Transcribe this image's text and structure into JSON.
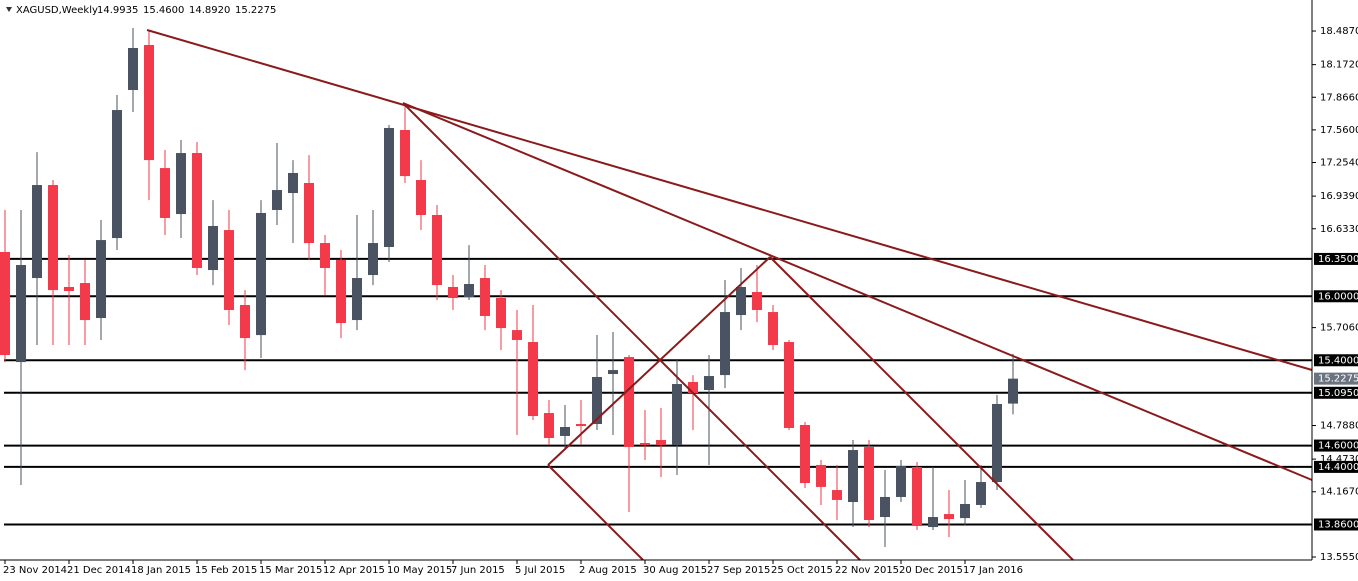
{
  "chart_data": {
    "type": "candlestick",
    "title": "XAGUSD,Weekly",
    "header_values": [
      "14.9935",
      "15.4600",
      "14.8920",
      "15.2275"
    ],
    "up_color": "#4a5361",
    "down_color": "#f23a4a",
    "level_color": "#000000",
    "trendline_color": "#8b1a1a",
    "categories": [
      "23 Nov 2014",
      null,
      null,
      null,
      "21 Dec 2014",
      null,
      null,
      null,
      "18 Jan 2015",
      null,
      null,
      null,
      "15 Feb 2015",
      null,
      null,
      null,
      "15 Mar 2015",
      null,
      null,
      null,
      "12 Apr 2015",
      null,
      null,
      null,
      "10 May 2015",
      null,
      null,
      null,
      "7 Jun 2015",
      null,
      null,
      null,
      "5 Jul 2015",
      null,
      null,
      null,
      "2 Aug 2015",
      null,
      null,
      null,
      "30 Aug 2015",
      null,
      null,
      null,
      "27 Sep 2015",
      null,
      null,
      null,
      "25 Oct 2015",
      null,
      null,
      null,
      "22 Nov 2015",
      null,
      null,
      null,
      "20 Dec 2015",
      null,
      null,
      null,
      "17 Jan 2016",
      null,
      null,
      null
    ],
    "open": [
      16.415,
      15.383,
      16.171,
      17.043,
      16.087,
      16.124,
      15.796,
      16.546,
      17.934,
      18.356,
      17.202,
      16.771,
      17.343,
      16.246,
      16.621,
      15.918,
      15.636,
      16.809,
      16.968,
      17.062,
      16.499,
      16.34,
      15.777,
      16.199,
      16.462,
      17.559,
      17.09,
      16.762,
      16.087,
      15.993,
      16.171,
      15.984,
      15.683,
      15.571,
      14.905,
      14.69,
      14.802,
      14.802,
      15.271,
      15.43,
      14.624,
      14.652,
      14.605,
      15.196,
      15.121,
      15.261,
      15.824,
      16.04,
      15.852,
      15.571,
      14.793,
      14.418,
      14.183,
      14.071,
      14.586,
      13.93,
      14.118,
      14.399,
      13.836,
      13.958,
      13.92,
      14.043,
      14.258,
      14.9935
    ],
    "high": [
      16.809,
      16.809,
      17.352,
      17.09,
      16.387,
      16.34,
      16.715,
      17.887,
      18.515,
      18.496,
      17.371,
      17.465,
      17.446,
      16.902,
      16.809,
      16.058,
      16.902,
      17.437,
      17.277,
      17.324,
      16.574,
      16.434,
      16.762,
      16.809,
      17.606,
      17.812,
      17.277,
      16.856,
      16.199,
      16.48,
      16.293,
      16.058,
      15.871,
      15.918,
      15.027,
      14.98,
      15.027,
      15.637,
      15.665,
      15.449,
      14.933,
      14.952,
      15.402,
      15.261,
      15.449,
      16.152,
      16.265,
      16.293,
      15.918,
      15.59,
      14.821,
      14.465,
      14.418,
      14.652,
      14.652,
      14.371,
      14.465,
      14.446,
      14.399,
      14.183,
      14.277,
      14.418,
      15.074,
      15.46
    ],
    "low": [
      15.383,
      14.23,
      15.543,
      15.543,
      15.543,
      15.543,
      15.59,
      16.434,
      17.728,
      16.902,
      16.574,
      16.546,
      16.199,
      16.105,
      15.73,
      15.308,
      15.421,
      16.668,
      16.499,
      16.34,
      16.012,
      15.608,
      15.683,
      16.105,
      16.321,
      17.062,
      16.621,
      15.965,
      15.871,
      15.965,
      15.683,
      15.496,
      14.699,
      14.84,
      14.605,
      14.558,
      14.605,
      14.746,
      14.699,
      13.977,
      14.465,
      14.305,
      14.324,
      14.746,
      14.418,
      15.139,
      15.683,
      15.758,
      15.496,
      14.746,
      14.202,
      14.043,
      13.902,
      13.836,
      13.836,
      13.649,
      14.071,
      13.808,
      13.808,
      13.742,
      13.855,
      14.015,
      14.183,
      14.892
    ],
    "close": [
      15.449,
      16.293,
      17.043,
      16.058,
      16.049,
      15.777,
      16.527,
      17.746,
      18.328,
      17.277,
      16.734,
      17.343,
      16.265,
      16.659,
      15.871,
      15.608,
      16.781,
      16.996,
      17.156,
      16.499,
      16.265,
      15.749,
      16.171,
      16.499,
      17.578,
      17.127,
      16.762,
      16.105,
      15.984,
      16.115,
      15.815,
      15.702,
      15.59,
      14.877,
      14.671,
      14.774,
      14.783,
      15.243,
      15.308,
      14.587,
      14.605,
      14.605,
      15.177,
      15.093,
      15.252,
      15.852,
      16.087,
      15.871,
      15.543,
      14.765,
      14.249,
      14.212,
      14.09,
      14.558,
      13.902,
      14.118,
      14.409,
      13.846,
      13.93,
      13.911,
      14.052,
      14.258,
      14.99,
      15.2275
    ],
    "ylim": [
      13.527,
      18.778
    ],
    "yticks": [
      {
        "value": 18.487,
        "label": "18.4870"
      },
      {
        "value": 18.172,
        "label": "18.1720"
      },
      {
        "value": 17.866,
        "label": "17.8660"
      },
      {
        "value": 17.56,
        "label": "17.5600"
      },
      {
        "value": 17.254,
        "label": "17.2540"
      },
      {
        "value": 16.939,
        "label": "16.9390"
      },
      {
        "value": 16.633,
        "label": "16.6330"
      },
      {
        "value": 15.706,
        "label": "15.7060"
      },
      {
        "value": 14.788,
        "label": "14.7880"
      },
      {
        "value": 14.473,
        "label": "14.4730"
      },
      {
        "value": 14.167,
        "label": "14.1670"
      },
      {
        "value": 13.555,
        "label": "13.5550"
      }
    ],
    "levels": [
      {
        "value": 16.35,
        "label": "16.3500"
      },
      {
        "value": 16.0,
        "label": "16.0000"
      },
      {
        "value": 15.4,
        "label": "15.4000"
      },
      {
        "value": 15.095,
        "label": "15.0950"
      },
      {
        "value": 14.6,
        "label": "14.6000"
      },
      {
        "value": 14.4,
        "label": "14.4000"
      },
      {
        "value": 13.86,
        "label": "13.8600"
      }
    ],
    "current_price": {
      "value": 15.2275,
      "label": "15.2275"
    }
  }
}
